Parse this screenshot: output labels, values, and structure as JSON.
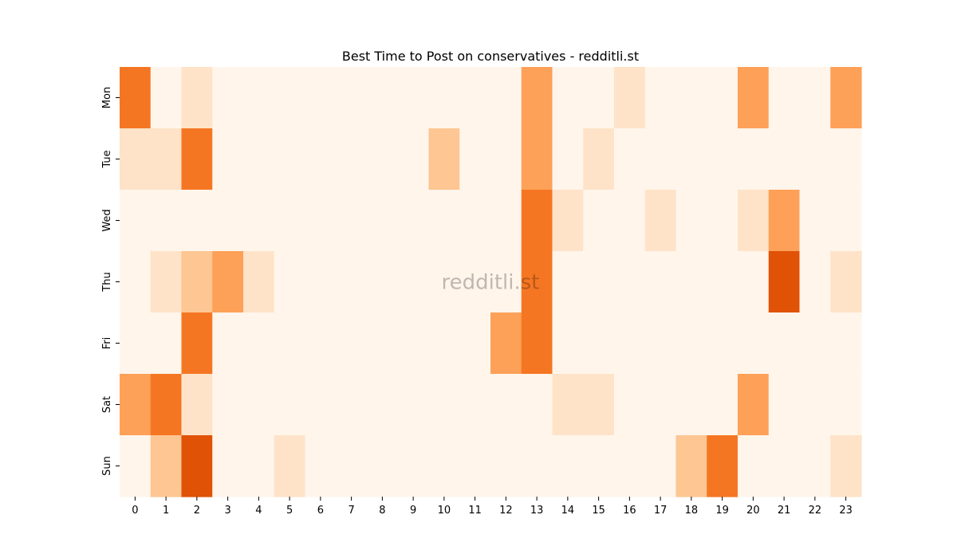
{
  "chart_data": {
    "type": "heatmap",
    "title": "Best Time to Post on conservatives - redditli.st",
    "watermark": "redditli.st",
    "xlabel": "",
    "ylabel": "",
    "x_categories": [
      "0",
      "1",
      "2",
      "3",
      "4",
      "5",
      "6",
      "7",
      "8",
      "9",
      "10",
      "11",
      "12",
      "13",
      "14",
      "15",
      "16",
      "17",
      "18",
      "19",
      "20",
      "21",
      "22",
      "23"
    ],
    "y_categories": [
      "Mon",
      "Tue",
      "Wed",
      "Thu",
      "Fri",
      "Sat",
      "Sun"
    ],
    "values": [
      [
        4,
        0,
        1,
        0,
        0,
        0,
        0,
        0,
        0,
        0,
        0,
        0,
        0,
        3,
        0,
        0,
        1,
        0,
        0,
        0,
        3,
        0,
        0,
        3
      ],
      [
        1,
        1,
        4,
        0,
        0,
        0,
        0,
        0,
        0,
        0,
        2,
        0,
        0,
        3,
        0,
        1,
        0,
        0,
        0,
        0,
        0,
        0,
        0,
        0
      ],
      [
        0,
        0,
        0,
        0,
        0,
        0,
        0,
        0,
        0,
        0,
        0,
        0,
        0,
        4,
        1,
        0,
        0,
        1,
        0,
        0,
        1,
        3,
        0,
        0
      ],
      [
        0,
        1,
        2,
        3,
        1,
        0,
        0,
        0,
        0,
        0,
        0,
        0,
        0,
        4,
        0,
        0,
        0,
        0,
        0,
        0,
        0,
        5,
        0,
        1
      ],
      [
        0,
        0,
        4,
        0,
        0,
        0,
        0,
        0,
        0,
        0,
        0,
        0,
        3,
        4,
        0,
        0,
        0,
        0,
        0,
        0,
        0,
        0,
        0,
        0
      ],
      [
        3,
        4,
        1,
        0,
        0,
        0,
        0,
        0,
        0,
        0,
        0,
        0,
        0,
        0,
        1,
        1,
        0,
        0,
        0,
        0,
        3,
        0,
        0,
        0
      ],
      [
        0,
        2,
        5,
        0,
        0,
        1,
        0,
        0,
        0,
        0,
        0,
        0,
        0,
        0,
        0,
        0,
        0,
        0,
        2,
        4,
        0,
        0,
        0,
        1
      ]
    ],
    "colormap": "Oranges",
    "color_levels": [
      "#fff5eb",
      "#fee3c8",
      "#fdc692",
      "#fda058",
      "#f57622",
      "#e05206",
      "#7f2704"
    ],
    "colorbar": false,
    "grid": false
  }
}
